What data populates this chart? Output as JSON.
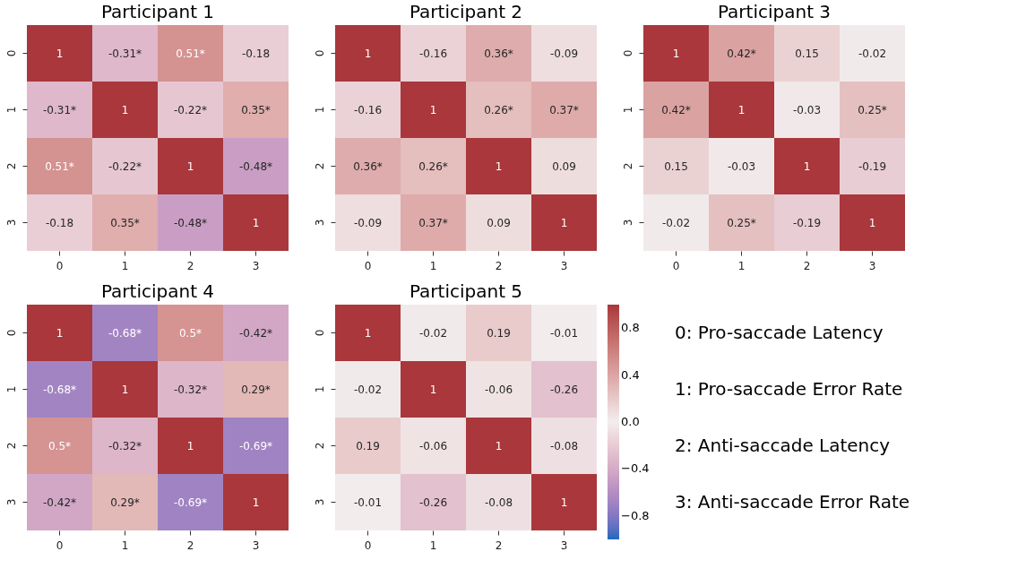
{
  "chart_data": [
    {
      "type": "heatmap",
      "title": "Participant 1",
      "categories": [
        "0",
        "1",
        "2",
        "3"
      ],
      "y_categories": [
        "0",
        "1",
        "2",
        "3"
      ],
      "cells": [
        [
          1,
          -0.31,
          0.51,
          -0.18
        ],
        [
          -0.31,
          1,
          -0.22,
          0.35
        ],
        [
          0.51,
          -0.22,
          1,
          -0.48
        ],
        [
          -0.18,
          0.35,
          -0.48,
          1
        ]
      ],
      "cell_labels": [
        [
          "1",
          "-0.31*",
          "0.51*",
          "-0.18"
        ],
        [
          "-0.31*",
          "1",
          "-0.22*",
          "0.35*"
        ],
        [
          "0.51*",
          "-0.22*",
          "1",
          "-0.48*"
        ],
        [
          "-0.18",
          "0.35*",
          "-0.48*",
          "1"
        ]
      ]
    },
    {
      "type": "heatmap",
      "title": "Participant 2",
      "categories": [
        "0",
        "1",
        "2",
        "3"
      ],
      "y_categories": [
        "0",
        "1",
        "2",
        "3"
      ],
      "cells": [
        [
          1,
          -0.16,
          0.36,
          -0.09
        ],
        [
          -0.16,
          1,
          0.26,
          0.37
        ],
        [
          0.36,
          0.26,
          1,
          0.09
        ],
        [
          -0.09,
          0.37,
          0.09,
          1
        ]
      ],
      "cell_labels": [
        [
          "1",
          "-0.16",
          "0.36*",
          "-0.09"
        ],
        [
          "-0.16",
          "1",
          "0.26*",
          "0.37*"
        ],
        [
          "0.36*",
          "0.26*",
          "1",
          "0.09"
        ],
        [
          "-0.09",
          "0.37*",
          "0.09",
          "1"
        ]
      ]
    },
    {
      "type": "heatmap",
      "title": "Participant 3",
      "categories": [
        "0",
        "1",
        "2",
        "3"
      ],
      "y_categories": [
        "0",
        "1",
        "2",
        "3"
      ],
      "cells": [
        [
          1,
          0.42,
          0.15,
          -0.02
        ],
        [
          0.42,
          1,
          -0.03,
          0.25
        ],
        [
          0.15,
          -0.03,
          1,
          -0.19
        ],
        [
          -0.02,
          0.25,
          -0.19,
          1
        ]
      ],
      "cell_labels": [
        [
          "1",
          "0.42*",
          "0.15",
          "-0.02"
        ],
        [
          "0.42*",
          "1",
          "-0.03",
          "0.25*"
        ],
        [
          "0.15",
          "-0.03",
          "1",
          "-0.19"
        ],
        [
          "-0.02",
          "0.25*",
          "-0.19",
          "1"
        ]
      ]
    },
    {
      "type": "heatmap",
      "title": "Participant 4",
      "categories": [
        "0",
        "1",
        "2",
        "3"
      ],
      "y_categories": [
        "0",
        "1",
        "2",
        "3"
      ],
      "cells": [
        [
          1,
          -0.68,
          0.5,
          -0.42
        ],
        [
          -0.68,
          1,
          -0.32,
          0.29
        ],
        [
          0.5,
          -0.32,
          1,
          -0.69
        ],
        [
          -0.42,
          0.29,
          -0.69,
          1
        ]
      ],
      "cell_labels": [
        [
          "1",
          "-0.68*",
          "0.5*",
          "-0.42*"
        ],
        [
          "-0.68*",
          "1",
          "-0.32*",
          "0.29*"
        ],
        [
          "0.5*",
          "-0.32*",
          "1",
          "-0.69*"
        ],
        [
          "-0.42*",
          "0.29*",
          "-0.69*",
          "1"
        ]
      ]
    },
    {
      "type": "heatmap",
      "title": "Participant 5",
      "categories": [
        "0",
        "1",
        "2",
        "3"
      ],
      "y_categories": [
        "0",
        "1",
        "2",
        "3"
      ],
      "cells": [
        [
          1,
          -0.02,
          0.19,
          -0.01
        ],
        [
          -0.02,
          1,
          -0.06,
          -0.26
        ],
        [
          0.19,
          -0.06,
          1,
          -0.08
        ],
        [
          -0.01,
          -0.26,
          -0.08,
          1
        ]
      ],
      "cell_labels": [
        [
          "1",
          "-0.02",
          "0.19",
          "-0.01"
        ],
        [
          "-0.02",
          "1",
          "-0.06",
          "-0.26"
        ],
        [
          "0.19",
          "-0.06",
          "1",
          "-0.08"
        ],
        [
          "-0.01",
          "-0.26",
          "-0.08",
          "1"
        ]
      ],
      "clim": [
        -1,
        1
      ],
      "cticks": [
        {
          "value": -0.8,
          "label": "−0.8"
        },
        {
          "value": -0.4,
          "label": "−0.4"
        },
        {
          "value": 0,
          "label": "0.0"
        },
        0.4,
        0.8
      ],
      "annotations": [
        "0: Pro-saccade Latency",
        "1: Pro-saccade Error Rate",
        "2: Anti-saccade Latency",
        "3: Anti-saccade Error Rate"
      ]
    }
  ]
}
